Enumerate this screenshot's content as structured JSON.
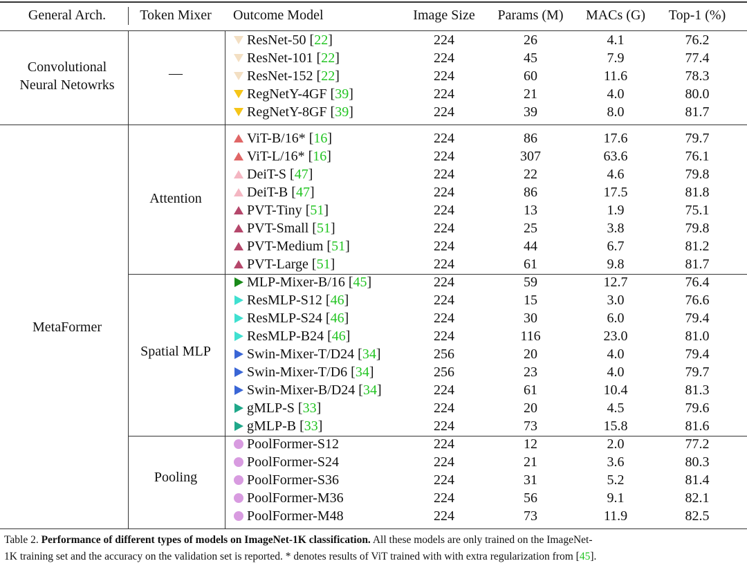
{
  "table": {
    "header": [
      "General Arch.",
      "Token Mixer",
      "Outcome Model",
      "Image Size",
      "Params (M)",
      "MACs (G)",
      "Top-1 (%)"
    ],
    "groups": [
      {
        "arch": [
          "Convolutional",
          "Neural Netowrks"
        ],
        "mixers": [
          {
            "mixer": "—",
            "rows": [
              {
                "model": "ResNet-50",
                "cite": [
                  "[",
                  "22",
                  "]"
                ],
                "marker": "tri-down",
                "marker_color": "#f3dfc3",
                "cells": [
                  "224",
                  "26",
                  "4.1",
                  "76.2"
                ]
              },
              {
                "model": "ResNet-101",
                "cite": [
                  "[",
                  "22",
                  "]"
                ],
                "marker": "tri-down",
                "marker_color": "#f3dfc3",
                "cells": [
                  "224",
                  "45",
                  "7.9",
                  "77.4"
                ]
              },
              {
                "model": "ResNet-152",
                "cite": [
                  "[",
                  "22",
                  "]"
                ],
                "marker": "tri-down",
                "marker_color": "#f3dfc3",
                "cells": [
                  "224",
                  "60",
                  "11.6",
                  "78.3"
                ]
              },
              {
                "model": "RegNetY-4GF",
                "cite": [
                  "[",
                  "39",
                  "]"
                ],
                "marker": "tri-down",
                "marker_color": "#f5c518",
                "cells": [
                  "224",
                  "21",
                  "4.0",
                  "80.0"
                ]
              },
              {
                "model": "RegNetY-8GF",
                "cite": [
                  "[",
                  "39",
                  "]"
                ],
                "marker": "tri-down",
                "marker_color": "#f5c518",
                "cells": [
                  "224",
                  "39",
                  "8.0",
                  "81.7"
                ]
              }
            ]
          }
        ]
      },
      {
        "arch": [
          "MetaFormer"
        ],
        "mixers": [
          {
            "mixer": "Attention",
            "rows": [
              {
                "model": "ViT-B/16*",
                "cite": [
                  "[",
                  "16",
                  "]"
                ],
                "marker": "tri-up",
                "marker_color": "#e06666",
                "cells": [
                  "224",
                  "86",
                  "17.6",
                  "79.7"
                ]
              },
              {
                "model": "ViT-L/16*",
                "cite": [
                  "[",
                  "16",
                  "]"
                ],
                "marker": "tri-up",
                "marker_color": "#e06666",
                "cells": [
                  "224",
                  "307",
                  "63.6",
                  "76.1"
                ]
              },
              {
                "model": "DeiT-S",
                "cite": [
                  "[",
                  "47",
                  "]"
                ],
                "marker": "tri-up",
                "marker_color": "#f4b6c2",
                "cells": [
                  "224",
                  "22",
                  "4.6",
                  "79.8"
                ]
              },
              {
                "model": "DeiT-B",
                "cite": [
                  "[",
                  "47",
                  "]"
                ],
                "marker": "tri-up",
                "marker_color": "#f4b6c2",
                "cells": [
                  "224",
                  "86",
                  "17.5",
                  "81.8"
                ]
              },
              {
                "model": "PVT-Tiny",
                "cite": [
                  "[",
                  "51",
                  "]"
                ],
                "marker": "tri-up",
                "marker_color": "#b5476b",
                "cells": [
                  "224",
                  "13",
                  "1.9",
                  "75.1"
                ]
              },
              {
                "model": "PVT-Small",
                "cite": [
                  "[",
                  "51",
                  "]"
                ],
                "marker": "tri-up",
                "marker_color": "#b5476b",
                "cells": [
                  "224",
                  "25",
                  "3.8",
                  "79.8"
                ]
              },
              {
                "model": "PVT-Medium",
                "cite": [
                  "[",
                  "51",
                  "]"
                ],
                "marker": "tri-up",
                "marker_color": "#b5476b",
                "cells": [
                  "224",
                  "44",
                  "6.7",
                  "81.2"
                ]
              },
              {
                "model": "PVT-Large",
                "cite": [
                  "[",
                  "51",
                  "]"
                ],
                "marker": "tri-up",
                "marker_color": "#b5476b",
                "cells": [
                  "224",
                  "61",
                  "9.8",
                  "81.7"
                ]
              }
            ]
          },
          {
            "mixer": "Spatial MLP",
            "rows": [
              {
                "model": "MLP-Mixer-B/16",
                "cite": [
                  "[",
                  "45",
                  "]"
                ],
                "marker": "tri-right",
                "marker_color": "#1a8a1a",
                "cells": [
                  "224",
                  "59",
                  "12.7",
                  "76.4"
                ]
              },
              {
                "model": "ResMLP-S12",
                "cite": [
                  "[",
                  "46",
                  "]"
                ],
                "marker": "tri-right",
                "marker_color": "#40e0d0",
                "cells": [
                  "224",
                  "15",
                  "3.0",
                  "76.6"
                ]
              },
              {
                "model": "ResMLP-S24",
                "cite": [
                  "[",
                  "46",
                  "]"
                ],
                "marker": "tri-right",
                "marker_color": "#40e0d0",
                "cells": [
                  "224",
                  "30",
                  "6.0",
                  "79.4"
                ]
              },
              {
                "model": "ResMLP-B24",
                "cite": [
                  "[",
                  "46",
                  "]"
                ],
                "marker": "tri-right",
                "marker_color": "#40e0d0",
                "cells": [
                  "224",
                  "116",
                  "23.0",
                  "81.0"
                ]
              },
              {
                "model": "Swin-Mixer-T/D24",
                "cite": [
                  "[",
                  "34",
                  "]"
                ],
                "marker": "tri-right",
                "marker_color": "#3a66d6",
                "cells": [
                  "256",
                  "20",
                  "4.0",
                  "79.4"
                ]
              },
              {
                "model": "Swin-Mixer-T/D6",
                "cite": [
                  "[",
                  "34",
                  "]"
                ],
                "marker": "tri-right",
                "marker_color": "#3a66d6",
                "cells": [
                  "256",
                  "23",
                  "4.0",
                  "79.7"
                ]
              },
              {
                "model": "Swin-Mixer-B/D24",
                "cite": [
                  "[",
                  "34",
                  "]"
                ],
                "marker": "tri-right",
                "marker_color": "#3a66d6",
                "cells": [
                  "224",
                  "61",
                  "10.4",
                  "81.3"
                ]
              },
              {
                "model": "gMLP-S",
                "cite": [
                  "[",
                  "33",
                  "]"
                ],
                "marker": "tri-right",
                "marker_color": "#20a88a",
                "cells": [
                  "224",
                  "20",
                  "4.5",
                  "79.6"
                ]
              },
              {
                "model": "gMLP-B",
                "cite": [
                  "[",
                  "33",
                  "]"
                ],
                "marker": "tri-right",
                "marker_color": "#20a88a",
                "cells": [
                  "224",
                  "73",
                  "15.8",
                  "81.6"
                ]
              }
            ]
          },
          {
            "mixer": "Pooling",
            "rows": [
              {
                "model": "PoolFormer-S12",
                "marker": "circle",
                "marker_color": "#d89be0",
                "cells": [
                  "224",
                  "12",
                  "2.0",
                  "77.2"
                ]
              },
              {
                "model": "PoolFormer-S24",
                "marker": "circle",
                "marker_color": "#d89be0",
                "cells": [
                  "224",
                  "21",
                  "3.6",
                  "80.3"
                ]
              },
              {
                "model": "PoolFormer-S36",
                "marker": "circle",
                "marker_color": "#d89be0",
                "cells": [
                  "224",
                  "31",
                  "5.2",
                  "81.4"
                ]
              },
              {
                "model": "PoolFormer-M36",
                "marker": "circle",
                "marker_color": "#d89be0",
                "cells": [
                  "224",
                  "56",
                  "9.1",
                  "82.1"
                ]
              },
              {
                "model": "PoolFormer-M48",
                "marker": "circle",
                "marker_color": "#d89be0",
                "cells": [
                  "224",
                  "73",
                  "11.9",
                  "82.5"
                ]
              }
            ]
          }
        ]
      }
    ]
  },
  "caption": {
    "label": "Table 2.",
    "bold": "Performance of different types of models on ImageNet-1K classification.",
    "line1": "All these models are only trained on the ImageNet-",
    "line2": "1K training set and the accuracy on the validation set is reported. * denotes results of ViT trained with with extra regularization from ",
    "cite": [
      "[",
      "45",
      "]"
    ],
    "end": "."
  }
}
